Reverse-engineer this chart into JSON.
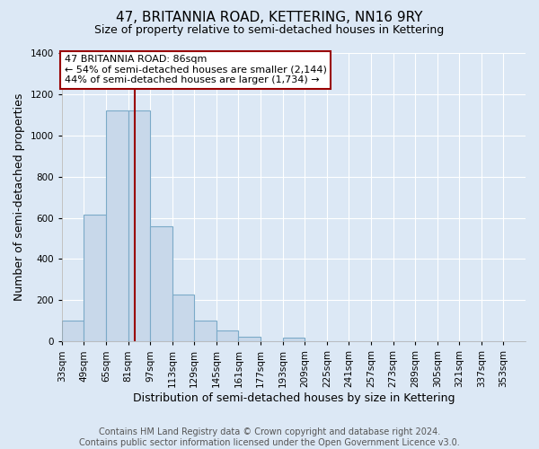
{
  "title": "47, BRITANNIA ROAD, KETTERING, NN16 9RY",
  "subtitle": "Size of property relative to semi-detached houses in Kettering",
  "xlabel": "Distribution of semi-detached houses by size in Kettering",
  "ylabel": "Number of semi-detached properties",
  "bin_labels": [
    "33sqm",
    "49sqm",
    "65sqm",
    "81sqm",
    "97sqm",
    "113sqm",
    "129sqm",
    "145sqm",
    "161sqm",
    "177sqm",
    "193sqm",
    "209sqm",
    "225sqm",
    "241sqm",
    "257sqm",
    "273sqm",
    "289sqm",
    "305sqm",
    "321sqm",
    "337sqm",
    "353sqm"
  ],
  "bin_edges": [
    33,
    49,
    65,
    81,
    97,
    113,
    129,
    145,
    161,
    177,
    193,
    209,
    225,
    241,
    257,
    273,
    289,
    305,
    321,
    337,
    353
  ],
  "bar_heights": [
    100,
    615,
    1120,
    1120,
    560,
    230,
    100,
    52,
    25,
    0,
    20,
    0,
    0,
    0,
    0,
    0,
    0,
    0,
    0,
    0
  ],
  "bar_color": "#c8d8ea",
  "bar_edge_color": "#7baac8",
  "vline_x": 86,
  "vline_color": "#990000",
  "annotation_text": "47 BRITANNIA ROAD: 86sqm\n← 54% of semi-detached houses are smaller (2,144)\n44% of semi-detached houses are larger (1,734) →",
  "annotation_box_color": "#ffffff",
  "annotation_box_edge": "#990000",
  "ylim": [
    0,
    1400
  ],
  "yticks": [
    0,
    200,
    400,
    600,
    800,
    1000,
    1200,
    1400
  ],
  "footer_line1": "Contains HM Land Registry data © Crown copyright and database right 2024.",
  "footer_line2": "Contains public sector information licensed under the Open Government Licence v3.0.",
  "background_color": "#dce8f5",
  "plot_bg_color": "#dce8f5",
  "grid_color": "#ffffff",
  "title_fontsize": 11,
  "subtitle_fontsize": 9,
  "axis_label_fontsize": 9,
  "tick_fontsize": 7.5,
  "footer_fontsize": 7
}
